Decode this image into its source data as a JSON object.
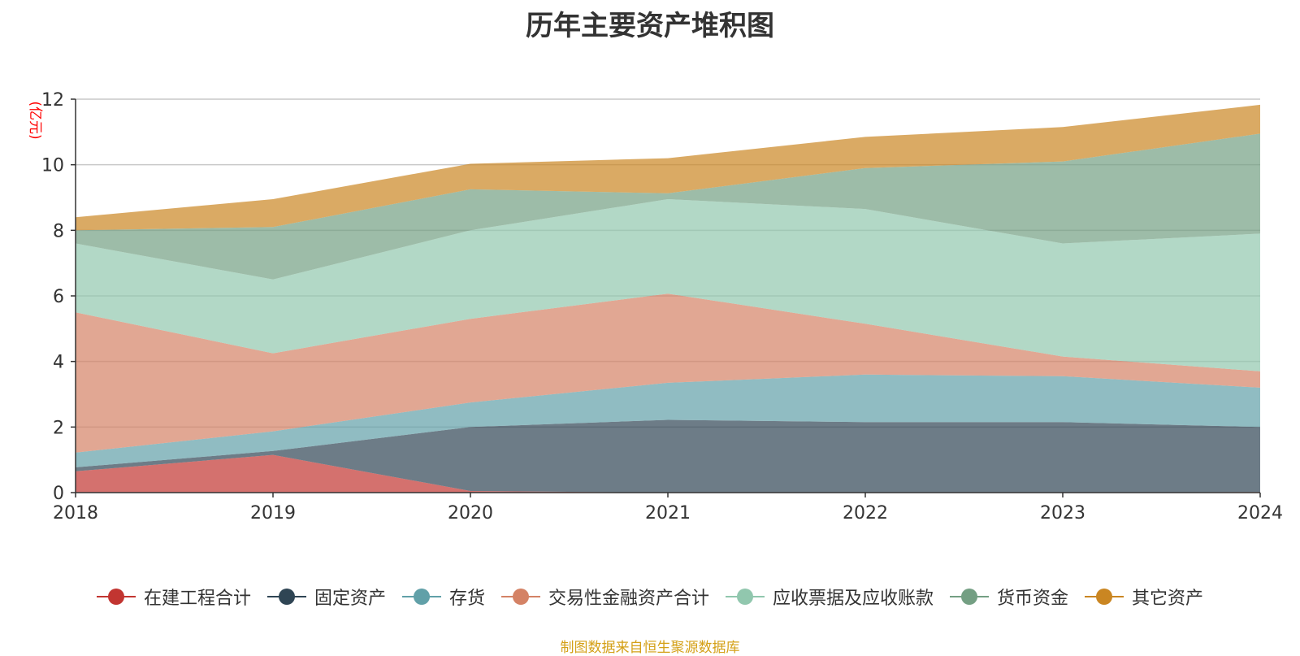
{
  "chart_data": {
    "type": "area",
    "stacked": true,
    "title": "历年主要资产堆积图",
    "ylabel": "(亿元)",
    "x": [
      "2018",
      "2019",
      "2020",
      "2021",
      "2022",
      "2023",
      "2024"
    ],
    "ylim": [
      0,
      12
    ],
    "yticks": [
      "0",
      "2",
      "4",
      "6",
      "8",
      "10",
      "12"
    ],
    "grid": true,
    "legend_position": "bottom",
    "series": [
      {
        "name": "在建工程合计",
        "color": "#c23531",
        "values": [
          0.65,
          1.15,
          0.05,
          0.0,
          0.0,
          0.0,
          0.02
        ]
      },
      {
        "name": "固定资产",
        "color": "#2f4554",
        "values": [
          0.12,
          0.12,
          1.95,
          2.22,
          2.15,
          2.15,
          1.98
        ]
      },
      {
        "name": "存货",
        "color": "#61a0a8",
        "values": [
          0.45,
          0.6,
          0.75,
          1.13,
          1.45,
          1.4,
          1.2
        ]
      },
      {
        "name": "交易性金融资产合计",
        "color": "#d48265",
        "values": [
          4.28,
          2.38,
          2.55,
          2.72,
          1.55,
          0.6,
          0.5
        ]
      },
      {
        "name": "应收票据及应收账款",
        "color": "#91c7ae",
        "values": [
          2.1,
          2.25,
          2.7,
          2.88,
          3.5,
          3.45,
          4.2
        ]
      },
      {
        "name": "货币资金",
        "color": "#749f83",
        "values": [
          0.4,
          1.6,
          1.25,
          0.18,
          1.25,
          2.5,
          3.05
        ]
      },
      {
        "name": "其它资产",
        "color": "#ca8622",
        "values": [
          0.4,
          0.85,
          0.78,
          1.07,
          0.95,
          1.05,
          0.88
        ]
      }
    ],
    "source_note": "制图数据来自恒生聚源数据库"
  }
}
